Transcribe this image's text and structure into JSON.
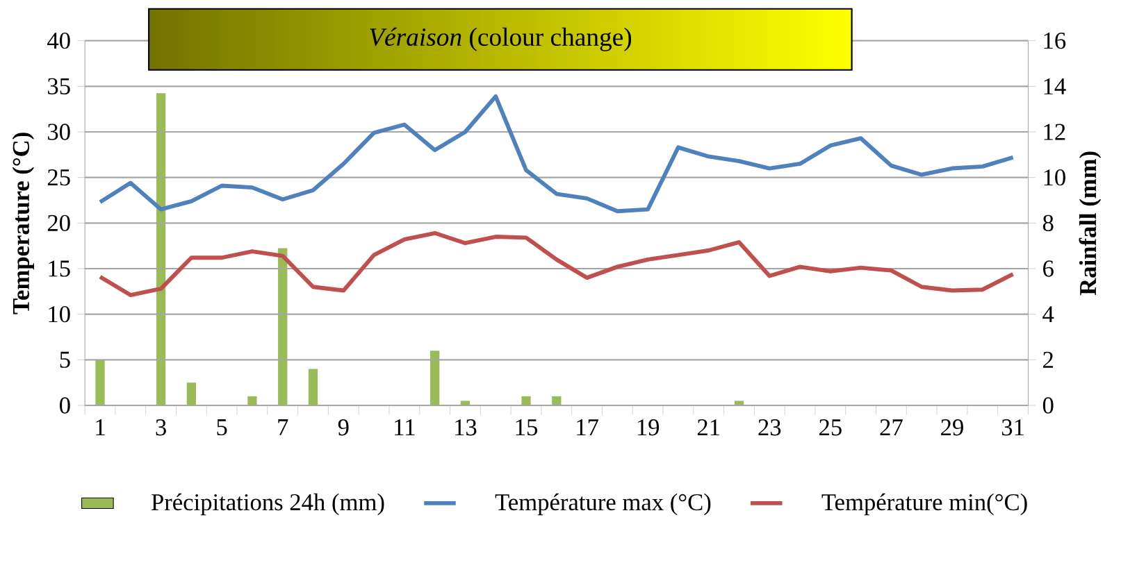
{
  "chart_data": {
    "type": "line",
    "categories": [
      "1",
      null,
      "3",
      null,
      "5",
      null,
      "7",
      null,
      "9",
      null,
      "11",
      null,
      "13",
      null,
      "15",
      null,
      "17",
      null,
      "19",
      null,
      "21",
      null,
      "23",
      null,
      "25",
      null,
      "27",
      null,
      "29",
      null,
      "31"
    ],
    "series": [
      {
        "name": "Précipitations 24h (mm)",
        "type": "bar",
        "axis": "y2",
        "color": "#9bbb59",
        "values": [
          2,
          0,
          13.7,
          1,
          0,
          0.4,
          6.9,
          1.6,
          0,
          0,
          0,
          2.4,
          0.2,
          0,
          0.4,
          0.4,
          0,
          0,
          0,
          0,
          0,
          0.2,
          0,
          0,
          0,
          0,
          0,
          0,
          0,
          0,
          0
        ]
      },
      {
        "name": "Température max (°C)",
        "color": "#4f81bd",
        "values": [
          22.3,
          24.4,
          21.5,
          22.4,
          24.1,
          23.9,
          22.6,
          23.6,
          26.5,
          29.9,
          30.8,
          28,
          30,
          33.9,
          25.8,
          23.2,
          22.7,
          21.3,
          21.5,
          28.3,
          27.3,
          26.8,
          26,
          26.5,
          28.5,
          29.3,
          26.3,
          25.3,
          26,
          26.2,
          27.2
        ]
      },
      {
        "name": "Température min(°C)",
        "color": "#c0504d",
        "values": [
          14.1,
          12.1,
          12.8,
          16.2,
          16.2,
          16.9,
          16.4,
          13,
          12.6,
          16.5,
          18.2,
          18.9,
          17.8,
          18.5,
          18.4,
          16,
          14,
          15.2,
          16,
          16.5,
          17,
          17.9,
          14.2,
          15.2,
          14.7,
          15.1,
          14.8,
          13,
          12.6,
          12.7,
          14.4
        ]
      }
    ],
    "ylabel": "Temperature (°C)",
    "y2label": "Rainfall (mm)",
    "ylim": [
      0,
      40
    ],
    "yticks": [
      0,
      5,
      10,
      15,
      20,
      25,
      30,
      35,
      40
    ],
    "y2lim": [
      0,
      16
    ],
    "y2ticks": [
      0,
      2,
      4,
      6,
      8,
      10,
      12,
      14,
      16
    ],
    "grid": "y",
    "legend": "bottom",
    "marker": "none",
    "annotations": [
      "*Véraison* (colour change)"
    ]
  }
}
